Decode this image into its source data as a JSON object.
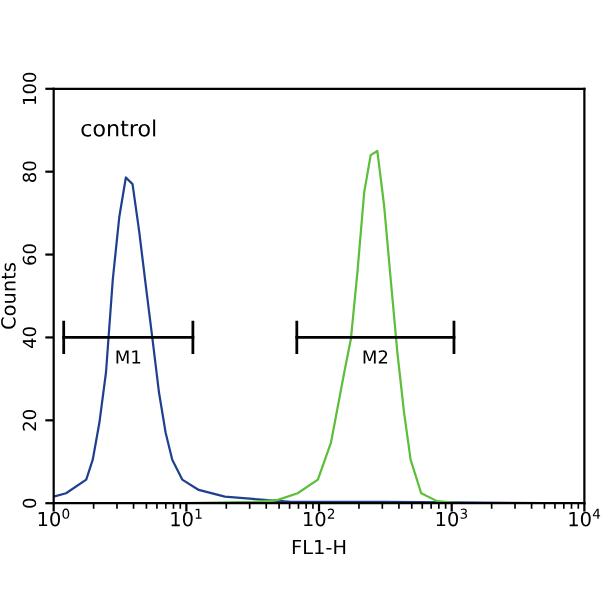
{
  "chart_data": {
    "type": "line",
    "xlabel": "FL1-H",
    "ylabel": "Counts",
    "log": "x",
    "xlim": [
      1,
      10000
    ],
    "ylim": [
      0,
      100
    ],
    "xticks": [
      {
        "value": 1,
        "label": "10$^{0}$"
      },
      {
        "value": 10,
        "label": "10$^{1}$"
      },
      {
        "value": 100,
        "label": "10$^{2}$"
      },
      {
        "value": 1000,
        "label": "10$^{3}$"
      },
      {
        "value": 10000,
        "label": "10$^{4}$"
      }
    ],
    "yticks": [
      0,
      20,
      40,
      60,
      80,
      100
    ],
    "grid": false,
    "legend": false,
    "marker": "none",
    "annotations": [
      "control"
    ],
    "series": [
      {
        "color": "#1f3f8f",
        "x": [
          1,
          1.24,
          1.76,
          1.97,
          2.21,
          2.48,
          2.79,
          3.12,
          3.5,
          3.93,
          4.41,
          4.94,
          5.55,
          6.22,
          6.98,
          7.83,
          9.31,
          12.4,
          19.5,
          38.9,
          61.7,
          316,
          1000,
          5000,
          10000
        ],
        "values": [
          1.6,
          2.4,
          5.7,
          10.5,
          19.4,
          31.6,
          54,
          69,
          78.6,
          77,
          65.6,
          52.7,
          39.7,
          26.7,
          17,
          10.5,
          5.7,
          3.2,
          1.6,
          0.8,
          0.3,
          0.3,
          0.2,
          0,
          0
        ]
      },
      {
        "color": "#5cbf3a",
        "x": [
          1,
          10,
          31.6,
          49,
          69,
          98,
          123,
          155,
          174,
          195,
          219,
          245,
          275,
          309,
          347,
          389,
          437,
          490,
          589,
          776,
          1096,
          2000,
          10000
        ],
        "values": [
          0,
          0,
          0.3,
          0.8,
          2.4,
          5.7,
          14.6,
          31.6,
          39.7,
          56,
          75,
          84,
          85,
          72,
          54,
          36.5,
          22,
          10.5,
          2.4,
          0.5,
          0,
          0,
          0
        ]
      },
      {
        "name": "M1",
        "color": "#000000",
        "x": [
          1.19,
          11.2
        ],
        "values": [
          40,
          40
        ],
        "errors": [
          4,
          4
        ]
      },
      {
        "name": "M2",
        "color": "#000000",
        "x": [
          68,
          1040
        ],
        "values": [
          40,
          40
        ],
        "errors": [
          4,
          4
        ]
      }
    ]
  }
}
